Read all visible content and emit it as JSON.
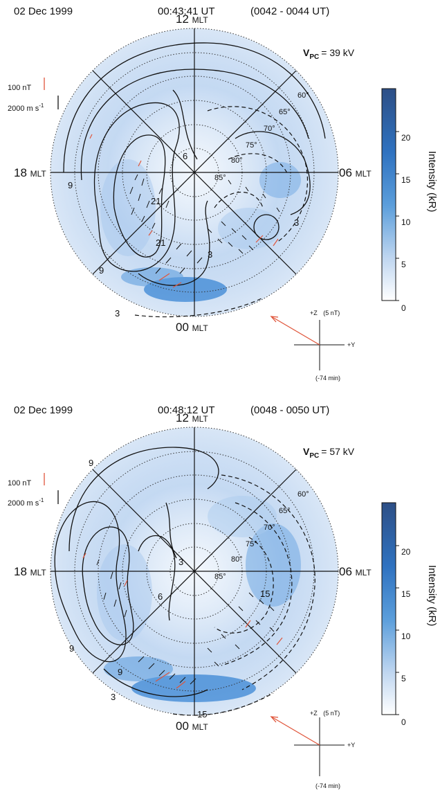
{
  "panels": [
    {
      "date": "02 Dec 1999",
      "time": "00:43:41 UT",
      "range": "(0042 - 0044 UT)",
      "mlt_labels": {
        "top": "12",
        "bottom": "00",
        "left": "18",
        "right": "06",
        "unit": "MLT"
      },
      "vpc": {
        "label": "V",
        "sub": "PC",
        "value": "= 39 kV"
      },
      "lat_labels": [
        "60°",
        "65°",
        "70°",
        "75°",
        "80°",
        "85°"
      ],
      "scale": {
        "mag": "100 nT",
        "vel": "2000 m s",
        "vel_exp": "-1"
      },
      "colorbar": {
        "label": "Intensity (kR)",
        "ticks": [
          "0",
          "5",
          "10",
          "15",
          "20"
        ],
        "max": 25
      },
      "imf": {
        "z": "+Z",
        "mag": "(5 nT)",
        "y": "+Y",
        "delay": "(-74 min)"
      },
      "contour_labels": [
        "3",
        "9",
        "21",
        "6",
        "21",
        "3",
        "9",
        "3",
        "3"
      ],
      "colors": {
        "aurora": "#4a8fd6",
        "arrow": "#e0553a",
        "contour": "#111111"
      }
    },
    {
      "date": "02 Dec 1999",
      "time": "00:48:12 UT",
      "range": "(0048 - 0050 UT)",
      "mlt_labels": {
        "top": "12",
        "bottom": "00",
        "left": "18",
        "right": "06",
        "unit": "MLT"
      },
      "vpc": {
        "label": "V",
        "sub": "PC",
        "value": "= 57 kV"
      },
      "lat_labels": [
        "60°",
        "65°",
        "70°",
        "75°",
        "80°",
        "85°"
      ],
      "scale": {
        "mag": "100 nT",
        "vel": "2000 m s",
        "vel_exp": "-1"
      },
      "colorbar": {
        "label": "Intensity (kR)",
        "ticks": [
          "0",
          "5",
          "10",
          "15",
          "20"
        ],
        "max": 25
      },
      "imf": {
        "z": "+Z",
        "mag": "(5 nT)",
        "y": "+Y",
        "delay": "(-74 min)"
      },
      "contour_labels": [
        "9",
        "9",
        "6",
        "3",
        "15",
        "9",
        "3",
        "15"
      ],
      "colors": {
        "aurora": "#4a8fd6",
        "arrow": "#e0553a",
        "contour": "#111111"
      }
    }
  ]
}
